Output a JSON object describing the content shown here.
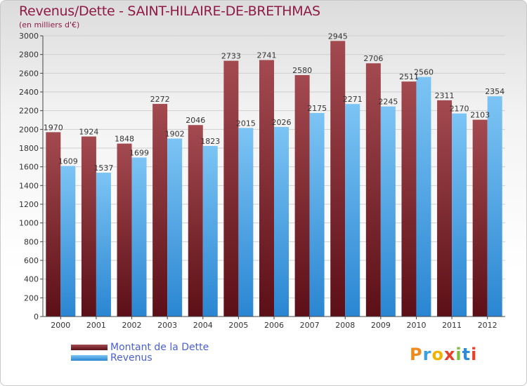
{
  "title": "Revenus/Dette - SAINT-HILAIRE-DE-BRETHMAS",
  "subtitle": "(en milliers d'€)",
  "logo_text": "Proxiti",
  "colors": {
    "title": "#8e1a45",
    "dette_top": "#a34a50",
    "dette_bottom": "#5c0f17",
    "revenus_top": "#7cc4f4",
    "revenus_bottom": "#2a86d2",
    "legend_text": "#4a5fd6"
  },
  "chart_data": {
    "type": "bar",
    "title": "Revenus/Dette - SAINT-HILAIRE-DE-BRETHMAS",
    "subtitle": "(en milliers d'€)",
    "categories": [
      "2000",
      "2001",
      "2002",
      "2003",
      "2004",
      "2005",
      "2006",
      "2007",
      "2008",
      "2009",
      "2010",
      "2011",
      "2012"
    ],
    "series": [
      {
        "name": "Montant de la Dette",
        "values": [
          1970,
          1924,
          1848,
          2272,
          2046,
          2733,
          2741,
          2580,
          2945,
          2706,
          2511,
          2311,
          2103
        ],
        "labels": [
          "1970",
          "1924",
          "1848",
          "2272",
          "2046",
          "2733",
          "2741",
          "2580",
          "2945",
          "2706",
          "2511",
          "2311",
          "2103"
        ]
      },
      {
        "name": "Revenus",
        "values": [
          1609,
          1537,
          1699,
          1902,
          1823,
          2015,
          2026,
          2175,
          2271,
          2245,
          2560,
          2170,
          2354
        ],
        "labels": [
          "1609",
          "1537",
          "1699",
          "1902",
          "1823",
          "2015",
          "2026",
          "2175",
          "2271",
          "2245",
          "2560",
          "2170",
          "2354"
        ]
      }
    ],
    "ylim": [
      0,
      3000
    ],
    "yticks": [
      0,
      200,
      400,
      600,
      800,
      1000,
      1200,
      1400,
      1600,
      1800,
      2000,
      2200,
      2400,
      2600,
      2800,
      3000
    ],
    "grid": true,
    "legend_position": "bottom-left"
  }
}
